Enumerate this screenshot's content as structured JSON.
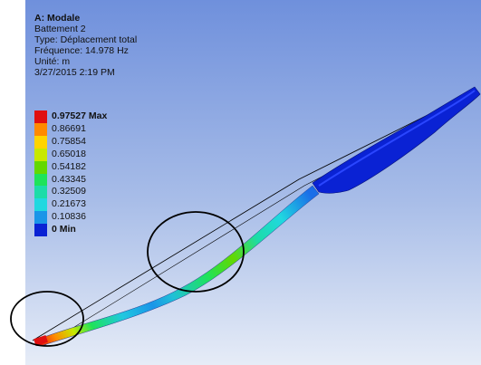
{
  "info": {
    "title": "A: Modale",
    "mode": "Battement 2",
    "type": "Type: Déplacement total",
    "frequency": "Fréquence: 14.978 Hz",
    "unit": "Unité: m",
    "timestamp": "3/27/2015 2:19 PM"
  },
  "legend": [
    {
      "label": "0.97527 Max",
      "color": "#e01010"
    },
    {
      "label": "0.86691",
      "color": "#ff8a00"
    },
    {
      "label": "0.75854",
      "color": "#ffd400"
    },
    {
      "label": "0.65018",
      "color": "#c8e800"
    },
    {
      "label": "0.54182",
      "color": "#63d800"
    },
    {
      "label": "0.43345",
      "color": "#1ee35a"
    },
    {
      "label": "0.32509",
      "color": "#1cdca8"
    },
    {
      "label": "0.21673",
      "color": "#20d8e0"
    },
    {
      "label": "0.10836",
      "color": "#1a95e8"
    },
    {
      "label": "0 Min",
      "color": "#0a22d4"
    }
  ],
  "colors": {
    "background_top": "#7a9ae0",
    "background_bottom": "#e8eef8",
    "annotation_circle": "#000000"
  }
}
